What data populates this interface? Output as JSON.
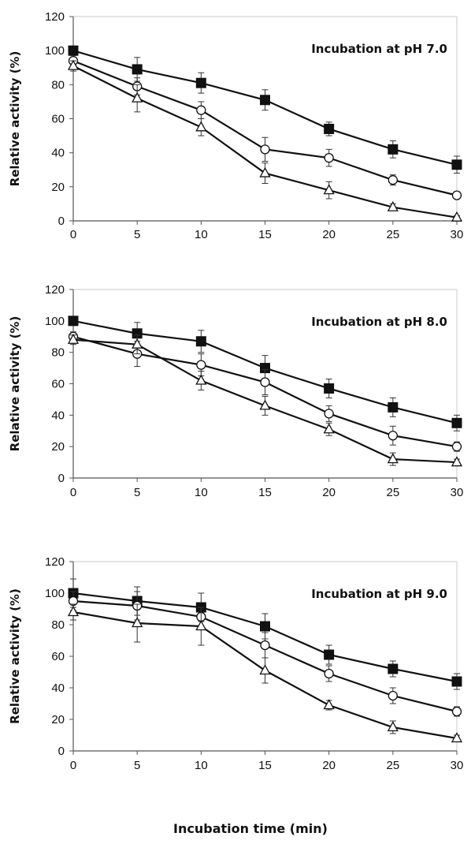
{
  "chart_data": {
    "shared_xlabel": "Incubation time (min)",
    "panels": [
      {
        "type": "line",
        "title": "Incubation at pH 7.0",
        "ylabel": "Relative activity (%)",
        "x": [
          0,
          5,
          10,
          15,
          20,
          25,
          30
        ],
        "xticks": [
          "0",
          "5",
          "10",
          "15",
          "20",
          "25",
          "30"
        ],
        "yticks": [
          "0",
          "20",
          "40",
          "60",
          "80",
          "100",
          "120"
        ],
        "xlim": [
          0,
          30
        ],
        "ylim": [
          0,
          120
        ],
        "series": [
          {
            "marker": "filled-square",
            "values": [
              100,
              89,
              81,
              71,
              54,
              42,
              33
            ],
            "errors": [
              2,
              7,
              6,
              6,
              4,
              5,
              5
            ]
          },
          {
            "marker": "open-circle",
            "values": [
              94,
              79,
              65,
              42,
              37,
              24,
              15
            ],
            "errors": [
              3,
              5,
              5,
              7,
              5,
              3,
              2
            ]
          },
          {
            "marker": "open-triangle",
            "values": [
              91,
              72,
              55,
              28,
              18,
              8,
              2
            ],
            "errors": [
              3,
              8,
              5,
              6,
              5,
              2,
              1
            ]
          }
        ]
      },
      {
        "type": "line",
        "title": "Incubation at pH 8.0",
        "ylabel": "Relative activity (%)",
        "x": [
          0,
          5,
          10,
          15,
          20,
          25,
          30
        ],
        "xticks": [
          "0",
          "5",
          "10",
          "15",
          "20",
          "25",
          "30"
        ],
        "yticks": [
          "0",
          "20",
          "40",
          "60",
          "80",
          "100",
          "120"
        ],
        "xlim": [
          0,
          30
        ],
        "ylim": [
          0,
          120
        ],
        "series": [
          {
            "marker": "filled-square",
            "values": [
              100,
              92,
              87,
              70,
              57,
              45,
              35
            ],
            "errors": [
              2,
              7,
              7,
              8,
              6,
              6,
              5
            ]
          },
          {
            "marker": "open-circle",
            "values": [
              90,
              79,
              72,
              61,
              41,
              27,
              20
            ],
            "errors": [
              3,
              8,
              7,
              8,
              5,
              6,
              3
            ]
          },
          {
            "marker": "open-triangle",
            "values": [
              88,
              85,
              62,
              46,
              31,
              12,
              10
            ],
            "errors": [
              3,
              6,
              6,
              6,
              4,
              4,
              2
            ]
          }
        ]
      },
      {
        "type": "line",
        "title": "Incubation at pH 9.0",
        "ylabel": "Relative activity (%)",
        "x": [
          0,
          5,
          10,
          15,
          20,
          25,
          30
        ],
        "xticks": [
          "0",
          "5",
          "10",
          "15",
          "20",
          "25",
          "30"
        ],
        "yticks": [
          "0",
          "20",
          "40",
          "60",
          "80",
          "100",
          "120"
        ],
        "xlim": [
          0,
          30
        ],
        "ylim": [
          0,
          120
        ],
        "series": [
          {
            "marker": "filled-square",
            "values": [
              100,
              95,
              91,
              79,
              61,
              52,
              44
            ],
            "errors": [
              9,
              9,
              9,
              8,
              6,
              5,
              5
            ]
          },
          {
            "marker": "open-circle",
            "values": [
              95,
              92,
              85,
              67,
              49,
              35,
              25
            ],
            "errors": [
              6,
              9,
              6,
              8,
              5,
              5,
              3
            ]
          },
          {
            "marker": "open-triangle",
            "values": [
              88,
              81,
              79,
              51,
              29,
              15,
              8
            ],
            "errors": [
              5,
              12,
              12,
              8,
              3,
              4,
              2
            ]
          }
        ]
      }
    ]
  }
}
